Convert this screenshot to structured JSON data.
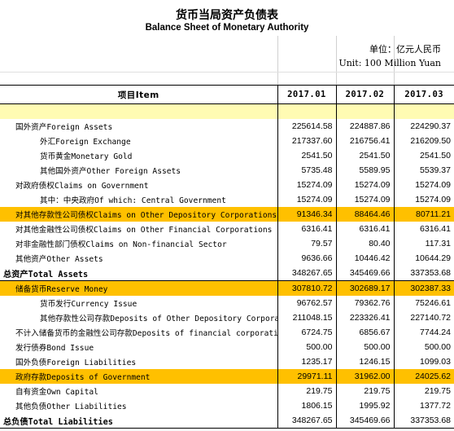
{
  "title": {
    "zh": "货币当局资产负债表",
    "en": "Balance Sheet of Monetary Authority"
  },
  "unit": {
    "zh": "单位：亿元人民币",
    "en": "Unit: 100 Million Yuan"
  },
  "columns": {
    "item": "项目Item",
    "periods": [
      "2017.01",
      "2017.02",
      "2017.03"
    ]
  },
  "rows": [
    {
      "label": "国外资产Foreign Assets",
      "indent": 1,
      "values": [
        "225614.58",
        "224887.86",
        "224290.37"
      ],
      "highlight": false,
      "bold": false
    },
    {
      "label": "外汇Foreign Exchange",
      "indent": 3,
      "values": [
        "217337.60",
        "216756.41",
        "216209.50"
      ],
      "highlight": false,
      "bold": false
    },
    {
      "label": "货币黄金Monetary Gold",
      "indent": 3,
      "values": [
        "2541.50",
        "2541.50",
        "2541.50"
      ],
      "highlight": false,
      "bold": false
    },
    {
      "label": "其他国外资产Other Foreign Assets",
      "indent": 3,
      "values": [
        "5735.48",
        "5589.95",
        "5539.37"
      ],
      "highlight": false,
      "bold": false
    },
    {
      "label": "对政府债权Claims on Government",
      "indent": 1,
      "values": [
        "15274.09",
        "15274.09",
        "15274.09"
      ],
      "highlight": false,
      "bold": false
    },
    {
      "label": "其中：中央政府Of which: Central Government",
      "indent": 3,
      "values": [
        "15274.09",
        "15274.09",
        "15274.09"
      ],
      "highlight": false,
      "bold": false
    },
    {
      "label": "对其他存款性公司债权Claims on Other Depository Corporations",
      "indent": 1,
      "values": [
        "91346.34",
        "88464.46",
        "80711.21"
      ],
      "highlight": true,
      "bold": false
    },
    {
      "label": "对其他金融性公司债权Claims on Other Financial Corporations",
      "indent": 1,
      "values": [
        "6316.41",
        "6316.41",
        "6316.41"
      ],
      "highlight": false,
      "bold": false
    },
    {
      "label": "对非金融性部门债权Claims on Non-financial Sector",
      "indent": 1,
      "values": [
        "79.57",
        "80.40",
        "117.31"
      ],
      "highlight": false,
      "bold": false
    },
    {
      "label": "其他资产Other Assets",
      "indent": 1,
      "values": [
        "9636.66",
        "10446.42",
        "10644.29"
      ],
      "highlight": false,
      "bold": false
    },
    {
      "label": "总资产Total Assets",
      "indent": 0,
      "values": [
        "348267.65",
        "345469.66",
        "337353.68"
      ],
      "highlight": false,
      "bold": true
    },
    {
      "label": "储备货币Reserve Money",
      "indent": 1,
      "values": [
        "307810.72",
        "302689.17",
        "302387.33"
      ],
      "highlight": true,
      "bold": false
    },
    {
      "label": "货币发行Currency Issue",
      "indent": 3,
      "values": [
        "96762.57",
        "79362.76",
        "75246.61"
      ],
      "highlight": false,
      "bold": false
    },
    {
      "label": "其他存款性公司存款Deposits of Other Depository Corporations",
      "indent": 3,
      "values": [
        "211048.15",
        "223326.41",
        "227140.72"
      ],
      "highlight": false,
      "bold": false
    },
    {
      "label": "不计入储备货币的金融性公司存款Deposits of financial corporations excluded from Reserve Money",
      "indent": 1,
      "values": [
        "6724.75",
        "6856.67",
        "7744.24"
      ],
      "highlight": false,
      "bold": false
    },
    {
      "label": "发行债券Bond Issue",
      "indent": 1,
      "values": [
        "500.00",
        "500.00",
        "500.00"
      ],
      "highlight": false,
      "bold": false
    },
    {
      "label": "国外负债Foreign Liabilities",
      "indent": 1,
      "values": [
        "1235.17",
        "1246.15",
        "1099.03"
      ],
      "highlight": false,
      "bold": false
    },
    {
      "label": "政府存款Deposits of Government",
      "indent": 1,
      "values": [
        "29971.11",
        "31962.00",
        "24025.62"
      ],
      "highlight": true,
      "bold": false
    },
    {
      "label": "自有资金Own Capital",
      "indent": 1,
      "values": [
        "219.75",
        "219.75",
        "219.75"
      ],
      "highlight": false,
      "bold": false
    },
    {
      "label": "其他负债Other Liabilities",
      "indent": 1,
      "values": [
        "1806.15",
        "1995.92",
        "1377.72"
      ],
      "highlight": false,
      "bold": false
    },
    {
      "label": "总负债Total Liabilities",
      "indent": 0,
      "values": [
        "348267.65",
        "345469.66",
        "337353.68"
      ],
      "highlight": false,
      "bold": true
    }
  ]
}
